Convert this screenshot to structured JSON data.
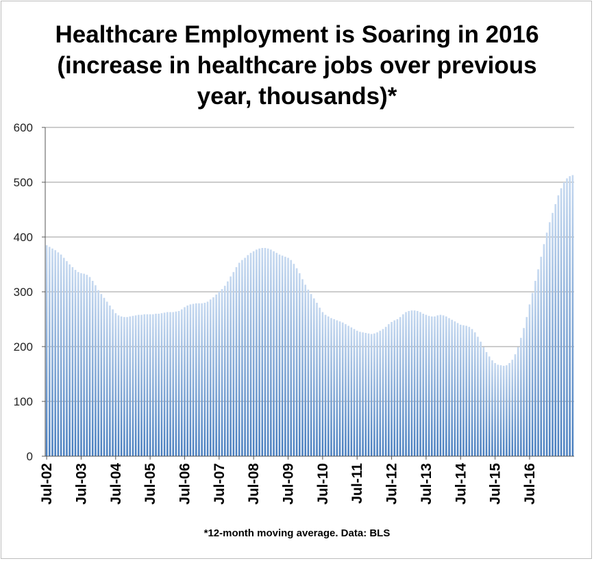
{
  "chart_data": {
    "type": "bar",
    "title_lines": [
      "Healthcare Employment is Soaring in 2016",
      "(increase in healthcare jobs over previous",
      "year, thousands)*"
    ],
    "footnote": "*12-month moving average. Data: BLS",
    "ylim": [
      0,
      600
    ],
    "yticks": [
      0,
      100,
      200,
      300,
      400,
      500,
      600
    ],
    "xtick_labels": [
      "Jul-02",
      "Jul-03",
      "Jul-04",
      "Jul-05",
      "Jul-06",
      "Jul-07",
      "Jul-08",
      "Jul-09",
      "Jul-10",
      "Jul-11",
      "Jul-12",
      "Jul-13",
      "Jul-14",
      "Jul-15",
      "Jul-16"
    ],
    "grid": true,
    "colors": {
      "bar_top": "#c6d9f0",
      "bar_bottom": "#4a7fbf",
      "grid": "#999999"
    },
    "start": "Jul-02",
    "frequency": "monthly",
    "values": [
      385,
      382,
      379,
      376,
      372,
      368,
      362,
      356,
      350,
      345,
      340,
      336,
      334,
      333,
      331,
      327,
      320,
      312,
      303,
      296,
      289,
      282,
      275,
      268,
      261,
      257,
      255,
      254,
      254,
      255,
      256,
      257,
      258,
      258,
      259,
      259,
      259,
      259,
      260,
      260,
      261,
      262,
      263,
      263,
      263,
      264,
      265,
      268,
      272,
      275,
      277,
      278,
      279,
      279,
      279,
      280,
      282,
      286,
      290,
      295,
      300,
      305,
      311,
      319,
      328,
      336,
      345,
      353,
      358,
      362,
      367,
      371,
      374,
      377,
      379,
      380,
      380,
      379,
      377,
      374,
      371,
      368,
      366,
      364,
      362,
      358,
      351,
      343,
      334,
      323,
      313,
      304,
      296,
      288,
      280,
      271,
      263,
      258,
      255,
      252,
      250,
      248,
      246,
      244,
      241,
      238,
      235,
      232,
      229,
      227,
      226,
      225,
      224,
      223,
      224,
      226,
      229,
      232,
      236,
      241,
      245,
      248,
      250,
      254,
      259,
      263,
      265,
      266,
      266,
      265,
      263,
      260,
      258,
      256,
      255,
      255,
      257,
      258,
      257,
      255,
      252,
      249,
      246,
      243,
      240,
      239,
      238,
      236,
      232,
      226,
      218,
      209,
      199,
      190,
      182,
      175,
      170,
      167,
      166,
      165,
      166,
      170,
      176,
      186,
      199,
      216,
      234,
      254,
      277,
      298,
      320,
      341,
      364,
      387,
      408,
      427,
      444,
      460,
      476,
      489,
      500,
      507,
      511,
      513
    ]
  }
}
